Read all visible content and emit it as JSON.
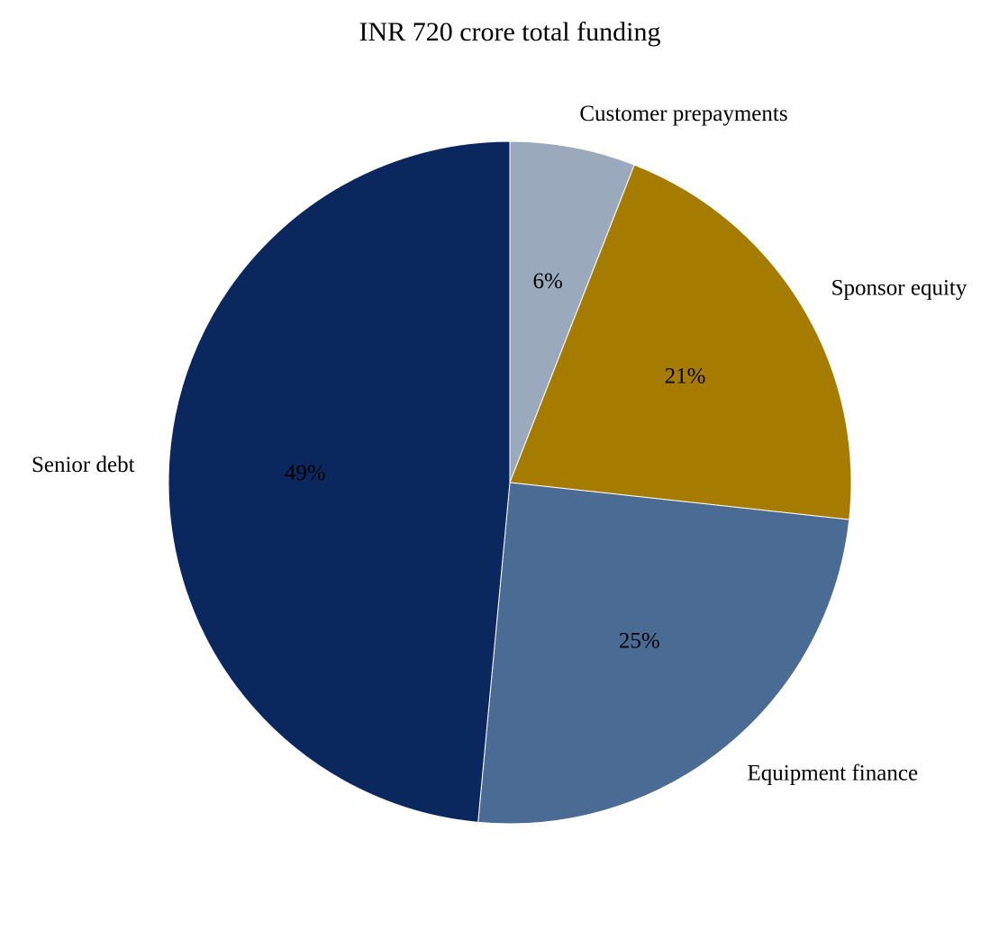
{
  "chart_data": {
    "type": "pie",
    "title": "INR 720 crore total funding",
    "start_angle_deg": 90,
    "direction": "clockwise",
    "slices": [
      {
        "label": "Customer prepayments",
        "value": 6,
        "pct_label": "6%",
        "color": "#9aa9bc"
      },
      {
        "label": "Sponsor equity",
        "value": 21,
        "pct_label": "21%",
        "color": "#a67c00"
      },
      {
        "label": "Equipment finance",
        "value": 25,
        "pct_label": "25%",
        "color": "#4a6b93"
      },
      {
        "label": "Senior debt",
        "value": 49,
        "pct_label": "49%",
        "color": "#0a285e"
      }
    ]
  }
}
